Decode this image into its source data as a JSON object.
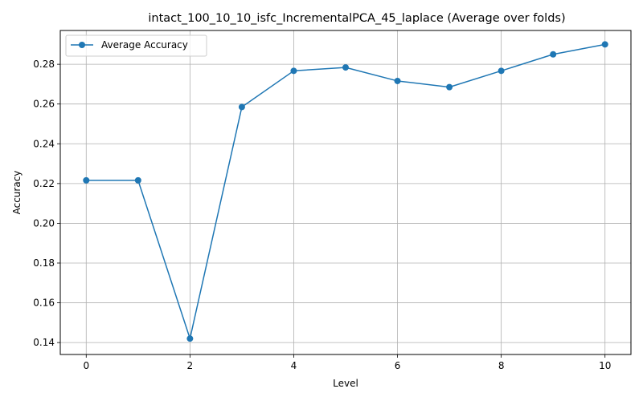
{
  "chart_data": {
    "type": "line",
    "title": "intact_100_10_10_isfc_IncrementalPCA_45_laplace (Average over folds)",
    "xlabel": "Level",
    "ylabel": "Accuracy",
    "xlim": [
      -0.5,
      10.5
    ],
    "ylim": [
      0.134,
      0.297
    ],
    "xticks": [
      0,
      2,
      4,
      6,
      8,
      10
    ],
    "yticks": [
      0.14,
      0.16,
      0.18,
      0.2,
      0.22,
      0.24,
      0.26,
      0.28
    ],
    "ytick_labels": [
      "0.14",
      "0.16",
      "0.18",
      "0.20",
      "0.22",
      "0.24",
      "0.26",
      "0.28"
    ],
    "grid": true,
    "legend_position": "top-left",
    "series": [
      {
        "name": "Average Accuracy",
        "color": "#1f77b4",
        "marker": "circle",
        "x": [
          0,
          1,
          2,
          3,
          4,
          5,
          6,
          7,
          8,
          9,
          10
        ],
        "y": [
          0.2216,
          0.2216,
          0.142,
          0.2585,
          0.2767,
          0.2784,
          0.2716,
          0.2685,
          0.2767,
          0.285,
          0.29
        ]
      }
    ]
  }
}
